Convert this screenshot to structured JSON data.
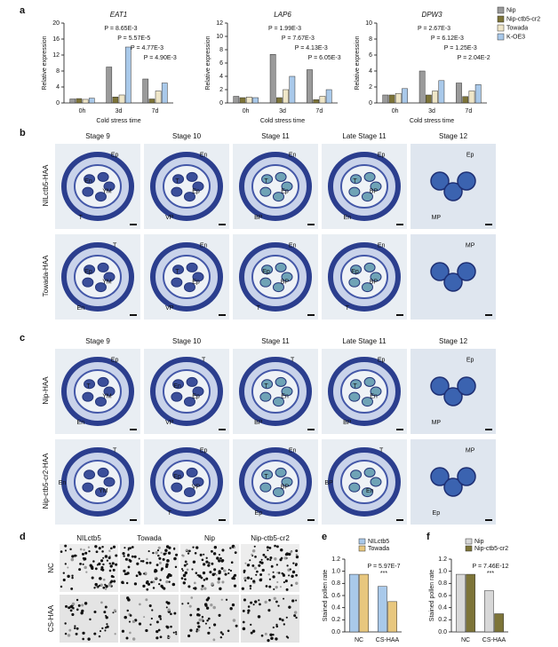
{
  "chart_data": [
    {
      "panel": "a",
      "type": "bar",
      "title": "EAT1",
      "x_label": "Cold stress time",
      "y_label": "Relative expression",
      "categories": [
        "0h",
        "3d",
        "7d"
      ],
      "ylim": [
        0,
        20
      ],
      "yticks": [
        0,
        4,
        8,
        12,
        16,
        20
      ],
      "series": [
        {
          "name": "Nip",
          "color": "#9a9a9a",
          "values": [
            1.0,
            9.0,
            6.0
          ]
        },
        {
          "name": "Nip-ctb5-cr2",
          "color": "#7d7438",
          "values": [
            1.1,
            1.5,
            1.0
          ]
        },
        {
          "name": "Towada",
          "color": "#efe6c8",
          "values": [
            0.9,
            2.0,
            3.0
          ]
        },
        {
          "name": "K-OE3",
          "color": "#a9c9ea",
          "values": [
            1.2,
            14.0,
            5.0
          ]
        }
      ],
      "annotations": [
        "P = 8.65E-3",
        "P = 5.57E-5",
        "P = 4.77E-3",
        "P = 4.90E-3"
      ]
    },
    {
      "panel": "",
      "type": "bar",
      "title": "LAP6",
      "x_label": "Cold stress time",
      "y_label": "Relative expression",
      "categories": [
        "0h",
        "3d",
        "7d"
      ],
      "ylim": [
        0,
        12
      ],
      "yticks": [
        0,
        2,
        4,
        6,
        8,
        10,
        12
      ],
      "series": [
        {
          "name": "Nip",
          "color": "#9a9a9a",
          "values": [
            1.0,
            7.3,
            5.0
          ]
        },
        {
          "name": "Nip-ctb5-cr2",
          "color": "#7d7438",
          "values": [
            0.8,
            0.8,
            0.5
          ]
        },
        {
          "name": "Towada",
          "color": "#efe6c8",
          "values": [
            0.9,
            2.0,
            1.0
          ]
        },
        {
          "name": "K-OE3",
          "color": "#a9c9ea",
          "values": [
            0.8,
            4.0,
            2.0
          ]
        }
      ],
      "annotations": [
        "P = 1.99E-3",
        "P = 7.67E-3",
        "P = 4.13E-3",
        "P = 6.05E-3"
      ]
    },
    {
      "panel": "",
      "type": "bar",
      "title": "DPW3",
      "x_label": "Cold stress time",
      "y_label": "Relative expression",
      "categories": [
        "0h",
        "3d",
        "7d"
      ],
      "ylim": [
        0,
        10
      ],
      "yticks": [
        0,
        2,
        4,
        6,
        8,
        10
      ],
      "series": [
        {
          "name": "Nip",
          "color": "#9a9a9a",
          "values": [
            1.0,
            4.0,
            2.5
          ]
        },
        {
          "name": "Nip-ctb5-cr2",
          "color": "#7d7438",
          "values": [
            1.0,
            1.0,
            0.8
          ]
        },
        {
          "name": "Towada",
          "color": "#efe6c8",
          "values": [
            1.2,
            1.5,
            1.5
          ]
        },
        {
          "name": "K-OE3",
          "color": "#a9c9ea",
          "values": [
            1.8,
            2.8,
            2.3
          ]
        }
      ],
      "annotations": [
        "P = 2.67E-3",
        "P = 6.12E-3",
        "P = 1.25E-3",
        "P = 2.04E-2"
      ]
    },
    {
      "panel": "e",
      "type": "bar",
      "y_label": "Stained pollen rate",
      "categories": [
        "NC",
        "CS-HAA"
      ],
      "ylim": [
        0,
        1.2
      ],
      "yticks": [
        {
          "value": 0,
          "label": "0.0"
        },
        0.2,
        0.4,
        0.6,
        0.8,
        {
          "value": 1,
          "label": "1.0"
        },
        1.2
      ],
      "series": [
        {
          "name": "NILctb5",
          "color": "#a9c9ea",
          "values": [
            0.95,
            0.75
          ]
        },
        {
          "name": "Towada",
          "color": "#e8c77e",
          "values": [
            0.95,
            0.5
          ]
        }
      ],
      "annotations": [
        "P = 5.97E-7",
        "***"
      ]
    },
    {
      "panel": "f",
      "type": "bar",
      "y_label": "Stained pollen rate",
      "categories": [
        "NC",
        "CS-HAA"
      ],
      "ylim": [
        0,
        1.2
      ],
      "yticks": [
        {
          "value": 0,
          "label": "0.0"
        },
        0.2,
        0.4,
        0.6,
        0.8,
        {
          "value": 1,
          "label": "1.0"
        },
        1.2
      ],
      "series": [
        {
          "name": "Nip",
          "color": "#d8d8d8",
          "values": [
            0.95,
            0.68
          ]
        },
        {
          "name": "Nip-ctb5-cr2",
          "color": "#7d7438",
          "values": [
            0.95,
            0.3
          ]
        }
      ],
      "annotations": [
        "P = 7.46E-12",
        "***"
      ]
    }
  ],
  "micrographs": [
    {
      "panel": "b",
      "headers": [
        "Stage 9",
        "Stage 10",
        "Stage 11",
        "Late  Stage 11",
        "Stage 12"
      ],
      "rows": [
        {
          "label": "NILctb5-HAA",
          "cells": [
            [
              "Ep",
              "YM",
              "T",
              "En"
            ],
            [
              "En",
              "Ep",
              "VP",
              "T"
            ],
            [
              "En",
              "Ep",
              "BP",
              "T"
            ],
            [
              "Ep",
              "BP",
              "En",
              "T"
            ],
            [
              "Ep",
              "MP"
            ]
          ]
        },
        {
          "label": "Towada-HAA",
          "cells": [
            [
              "T",
              "YM",
              "En",
              "Ep"
            ],
            [
              "En",
              "Ep",
              "VP",
              "T"
            ],
            [
              "En",
              "BP",
              "T",
              "Ep"
            ],
            [
              "En",
              "BP",
              "T",
              "Ep"
            ],
            [
              "MP"
            ]
          ]
        }
      ]
    },
    {
      "panel": "c",
      "headers": [
        "Stage 9",
        "Stage 10",
        "Stage 11",
        "Late  Stage 11",
        "Stage 12"
      ],
      "rows": [
        {
          "label": "Nip-HAA",
          "cells": [
            [
              "Ep",
              "YM",
              "En",
              "T"
            ],
            [
              "T",
              "Ep",
              "VP",
              "En"
            ],
            [
              "T",
              "En",
              "BP",
              "T"
            ],
            [
              "Ep",
              "En",
              "BP",
              "T"
            ],
            [
              "Ep",
              "MP"
            ]
          ]
        },
        {
          "label": "Nip-ctb5-cr2-HAA",
          "cells": [
            [
              "T",
              "YM",
              "En"
            ],
            [
              "Ep",
              "VP",
              "T",
              "Ep"
            ],
            [
              "En",
              "BP",
              "Ep",
              "T"
            ],
            [
              "T",
              "En",
              "BP"
            ],
            [
              "MP",
              "Ep"
            ]
          ]
        }
      ]
    }
  ],
  "pollen": {
    "panel": "d",
    "columns": [
      "NILctb5",
      "Towada",
      "Nip",
      "Nip-ctb5-cr2"
    ],
    "rows": [
      "NC",
      "CS-HAA"
    ]
  }
}
